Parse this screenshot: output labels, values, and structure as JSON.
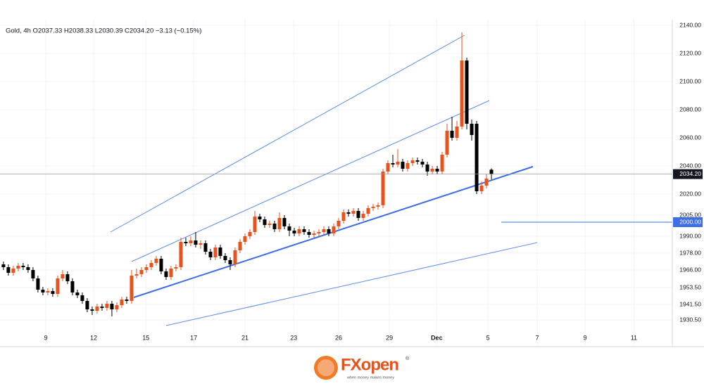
{
  "chart_data": {
    "type": "candlestick",
    "title": "Gold, 4h  O2037.33  H2038.33  L2030.39  C2034.20  −3.13 (−0.15%)",
    "up_color": "#e8531d",
    "down_color": "#000000",
    "open": [
      1970,
      1968,
      1964,
      1967,
      1969,
      1968,
      1966,
      1960,
      1952,
      1950,
      1951,
      1949,
      1960,
      1963,
      1958,
      1950,
      1948,
      1944,
      1938,
      1937,
      1940,
      1939,
      1942,
      1938,
      1941,
      1945,
      1944,
      1962,
      1963,
      1966,
      1968,
      1971,
      1974,
      1965,
      1961,
      1967,
      1968,
      1986,
      1985,
      1987,
      1984,
      1985,
      1979,
      1975,
      1982,
      1976,
      1973,
      1970,
      1980,
      1986,
      1990,
      1993,
      2004,
      2002,
      1998,
      1999,
      1995,
      2003,
      1997,
      1994,
      1992,
      1995,
      1993,
      1991,
      1992,
      1993,
      1995,
      1992,
      1997,
      2001,
      2007,
      2006,
      2008,
      2003,
      2006,
      2010,
      2011,
      2012,
      2036,
      2042,
      2041,
      2043,
      2038,
      2042,
      2044,
      2043,
      2041,
      2036,
      2038,
      2036,
      2048,
      2065,
      2060,
      2068,
      2115,
      2070,
      2070,
      2022,
      2026,
      2037.33
    ],
    "high": [
      1972,
      1970,
      1969,
      1971,
      1971,
      1970,
      1968,
      1962,
      1954,
      1953,
      1953,
      1962,
      1966,
      1965,
      1960,
      1952,
      1950,
      1946,
      1940,
      1942,
      1942,
      1944,
      1944,
      1943,
      1947,
      1947,
      1966,
      1967,
      1968,
      1970,
      1973,
      1976,
      1976,
      1967,
      1969,
      1970,
      1989,
      1989,
      1990,
      1993,
      1987,
      1987,
      1981,
      1984,
      1984,
      1978,
      1975,
      1982,
      1988,
      1992,
      1995,
      2008,
      2006,
      2004,
      2001,
      2001,
      2007,
      2005,
      1999,
      1996,
      1997,
      1997,
      1995,
      1994,
      1995,
      1997,
      1997,
      1999,
      2003,
      2009,
      2009,
      2010,
      2010,
      2008,
      2012,
      2013,
      2014,
      2038,
      2044,
      2048,
      2052,
      2045,
      2044,
      2046,
      2046,
      2045,
      2043,
      2040,
      2040,
      2050,
      2070,
      2075,
      2072,
      2135,
      2117,
      2073,
      2072,
      2029,
      2034,
      2038.33
    ],
    "low": [
      1966,
      1962,
      1962,
      1965,
      1966,
      1964,
      1958,
      1950,
      1948,
      1948,
      1947,
      1947,
      1958,
      1956,
      1948,
      1946,
      1942,
      1936,
      1934,
      1935,
      1937,
      1937,
      1933,
      1936,
      1939,
      1942,
      1942,
      1960,
      1961,
      1964,
      1966,
      1969,
      1963,
      1959,
      1959,
      1965,
      1966,
      1983,
      1983,
      1982,
      1981,
      1977,
      1973,
      1973,
      1974,
      1971,
      1966,
      1968,
      1978,
      1984,
      1988,
      1991,
      2000,
      1996,
      1996,
      1993,
      1993,
      1995,
      1990,
      1990,
      1990,
      1991,
      1989,
      1989,
      1990,
      1991,
      1990,
      1990,
      1995,
      1999,
      2004,
      2004,
      2001,
      2001,
      2004,
      2008,
      2009,
      2010,
      2034,
      2039,
      2039,
      2036,
      2036,
      2040,
      2041,
      2039,
      2033,
      2034,
      2034,
      2034,
      2046,
      2058,
      2058,
      2066,
      2066,
      2058,
      2020,
      2020,
      2024,
      2030.39
    ],
    "close": [
      1968,
      1964,
      1967,
      1969,
      1968,
      1966,
      1960,
      1952,
      1950,
      1951,
      1949,
      1960,
      1963,
      1958,
      1950,
      1948,
      1944,
      1938,
      1937,
      1940,
      1939,
      1942,
      1938,
      1941,
      1945,
      1944,
      1962,
      1963,
      1966,
      1968,
      1971,
      1974,
      1965,
      1961,
      1967,
      1968,
      1986,
      1985,
      1987,
      1984,
      1985,
      1979,
      1975,
      1982,
      1976,
      1973,
      1970,
      1980,
      1986,
      1990,
      1993,
      2004,
      2002,
      1998,
      1999,
      1995,
      2003,
      1997,
      1994,
      1992,
      1995,
      1993,
      1991,
      1992,
      1993,
      1995,
      1992,
      1997,
      2001,
      2007,
      2006,
      2008,
      2003,
      2006,
      2010,
      2011,
      2012,
      2036,
      2042,
      2041,
      2043,
      2038,
      2042,
      2044,
      2043,
      2041,
      2036,
      2038,
      2036,
      2048,
      2065,
      2060,
      2068,
      2115,
      2070,
      2062,
      2022,
      2026,
      2031,
      2034.2
    ],
    "xlim": [
      -0.7,
      135.7
    ],
    "xticks": [
      {
        "value": 8.6,
        "label": "9"
      },
      {
        "value": 18.3,
        "label": "12"
      },
      {
        "value": 28.9,
        "label": "15"
      },
      {
        "value": 38.6,
        "label": "17"
      },
      {
        "value": 49,
        "label": "21"
      },
      {
        "value": 58.9,
        "label": "23"
      },
      {
        "value": 68,
        "label": "26"
      },
      {
        "value": 78.3,
        "label": "29"
      },
      {
        "value": 87.9,
        "label": "Dec"
      },
      {
        "value": 98.3,
        "label": "5"
      },
      {
        "value": 108.3,
        "label": "7"
      },
      {
        "value": 118,
        "label": "9"
      },
      {
        "value": 127.9,
        "label": "11"
      }
    ],
    "ylim": [
      1913,
      2144
    ],
    "yticks": [
      {
        "value": 2140,
        "label": "2140.00"
      },
      {
        "value": 2120,
        "label": "2120.00"
      },
      {
        "value": 2100,
        "label": "2100.00"
      },
      {
        "value": 2080,
        "label": "2080.00"
      },
      {
        "value": 2060,
        "label": "2060.00"
      },
      {
        "value": 2040,
        "label": "2040.00"
      },
      {
        "value": 2020,
        "label": "2020.00"
      },
      {
        "value": 2005,
        "label": "2005.00"
      },
      {
        "value": 1990,
        "label": "1990.00"
      },
      {
        "value": 1978,
        "label": "1978.00"
      },
      {
        "value": 1966,
        "label": "1966.00"
      },
      {
        "value": 1953.5,
        "label": "1953.50"
      },
      {
        "value": 1941.5,
        "label": "1941.50"
      },
      {
        "value": 1930.5,
        "label": "1930.50"
      }
    ],
    "price_line": {
      "value": 2034.2,
      "label": "2034.20"
    },
    "level_line": {
      "value": 2000,
      "label": "2000.00"
    }
  },
  "logo": {
    "brand": "FXopen",
    "mark": "®",
    "tagline": "when money makes money"
  }
}
